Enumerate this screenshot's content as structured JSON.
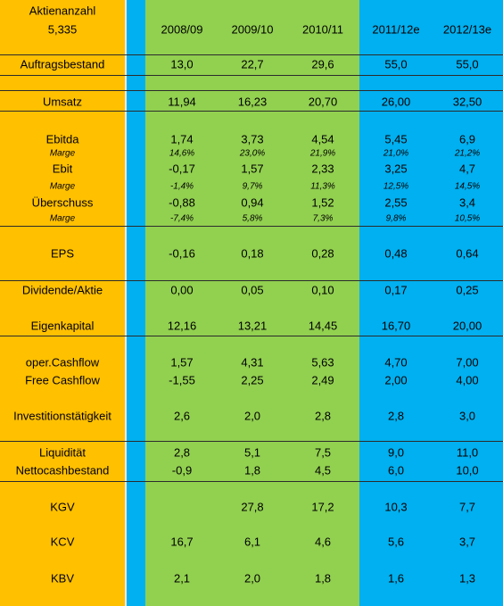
{
  "header": {
    "label": "Aktienanzahl",
    "shares": "5,335",
    "years": [
      "2008/09",
      "2009/10",
      "2010/11",
      "2011/12e",
      "2012/13e"
    ]
  },
  "rows": [
    {
      "label": "Auftragsbestand",
      "values": [
        "13,0",
        "22,7",
        "29,6",
        "55,0",
        "55,0"
      ]
    },
    {
      "label": "Umsatz",
      "values": [
        "11,94",
        "16,23",
        "20,70",
        "26,00",
        "32,50"
      ]
    },
    {
      "label": "Ebitda",
      "values": [
        "1,74",
        "3,73",
        "4,54",
        "5,45",
        "6,9"
      ]
    },
    {
      "label": "Marge",
      "values": [
        "14,6%",
        "23,0%",
        "21,9%",
        "21,0%",
        "21,2%"
      ],
      "italic": true
    },
    {
      "label": "Ebit",
      "values": [
        "-0,17",
        "1,57",
        "2,33",
        "3,25",
        "4,7"
      ]
    },
    {
      "label": "Marge",
      "values": [
        "-1,4%",
        "9,7%",
        "11,3%",
        "12,5%",
        "14,5%"
      ],
      "italic": true
    },
    {
      "label": "Überschuss",
      "values": [
        "-0,88",
        "0,94",
        "1,52",
        "2,55",
        "3,4"
      ]
    },
    {
      "label": "Marge",
      "values": [
        "-7,4%",
        "5,8%",
        "7,3%",
        "9,8%",
        "10,5%"
      ],
      "italic": true
    },
    {
      "label": "EPS",
      "values": [
        "-0,16",
        "0,18",
        "0,28",
        "0,48",
        "0,64"
      ]
    },
    {
      "label": "Dividende/Aktie",
      "values": [
        "0,00",
        "0,05",
        "0,10",
        "0,17",
        "0,25"
      ]
    },
    {
      "label": "Eigenkapital",
      "values": [
        "12,16",
        "13,21",
        "14,45",
        "16,70",
        "20,00"
      ]
    },
    {
      "label": "oper.Cashflow",
      "values": [
        "1,57",
        "4,31",
        "5,63",
        "4,70",
        "7,00"
      ]
    },
    {
      "label": "Free Cashflow",
      "values": [
        "-1,55",
        "2,25",
        "2,49",
        "2,00",
        "4,00"
      ]
    },
    {
      "label": "Investitionstätigkeit",
      "values": [
        "2,6",
        "2,0",
        "2,8",
        "2,8",
        "3,0"
      ]
    },
    {
      "label": "Liquidität",
      "values": [
        "2,8",
        "5,1",
        "7,5",
        "9,0",
        "11,0"
      ]
    },
    {
      "label": "Nettocashbestand",
      "values": [
        "-0,9",
        "1,8",
        "4,5",
        "6,0",
        "10,0"
      ]
    },
    {
      "label": "KGV",
      "values": [
        null,
        "27,8",
        "17,2",
        "10,3",
        "7,7"
      ]
    },
    {
      "label": "KCV",
      "values": [
        "16,7",
        "6,1",
        "4,6",
        "5,6",
        "3,7"
      ]
    },
    {
      "label": "KBV",
      "values": [
        "2,1",
        "2,0",
        "1,8",
        "1,6",
        "1,3"
      ]
    }
  ]
}
